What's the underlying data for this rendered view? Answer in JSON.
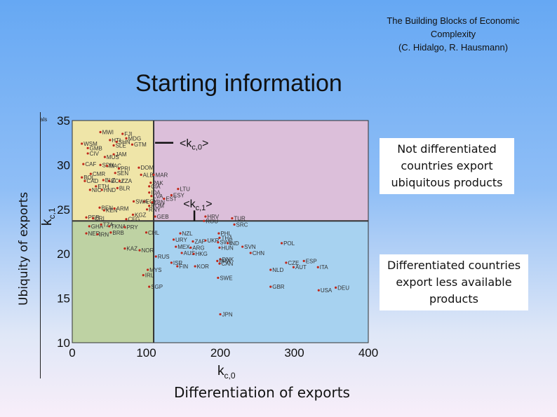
{
  "credit": {
    "line1": "The Building Blocks of Economic",
    "line2": "Complexity",
    "line3": "(C. Hidalgo, R. Hausmann)"
  },
  "slide_title": "Starting information",
  "side_label": "Ubiquity of exports",
  "bottom_label": "Differentiation of exports",
  "fragment": "als",
  "callouts": {
    "top": [
      "Not differentiated",
      "countries export",
      "ubiquitous products"
    ],
    "bottom": [
      "Differentiated countries",
      "export less available",
      "products"
    ]
  },
  "chart_data": {
    "type": "scatter",
    "xlabel": "k",
    "xlabel_sub": "c,0",
    "ylabel": "k",
    "ylabel_sub": "c,1",
    "xlim": [
      0,
      400
    ],
    "ylim": [
      10,
      35
    ],
    "xticks": [
      0,
      100,
      200,
      300,
      400
    ],
    "yticks": [
      10,
      15,
      20,
      25,
      30,
      35
    ],
    "grid": false,
    "quadrant_split": {
      "x": 110,
      "y": 23.7
    },
    "quadrant_colors": {
      "top_left": "#efe5a8",
      "top_right": "#dcbfda",
      "bottom_left": "#bed2a3",
      "bottom_right": "#a7d2f0"
    },
    "point_color": "#c0291b",
    "annotations": [
      {
        "text": "<k",
        "sub": "c,0",
        "suffix": ">",
        "x": 145,
        "y": 32.5
      },
      {
        "text": "<k",
        "sub": "c,1",
        "suffix": ">",
        "x": 150,
        "y": 25.7
      }
    ],
    "points": [
      {
        "label": "MWI",
        "x": 38,
        "y": 33.7
      },
      {
        "label": "FJI",
        "x": 68,
        "y": 33.5
      },
      {
        "label": "MDG",
        "x": 73,
        "y": 33.0
      },
      {
        "label": "HTI",
        "x": 51,
        "y": 32.8
      },
      {
        "label": "SHN",
        "x": 60,
        "y": 32.6
      },
      {
        "label": "WSM",
        "x": 13,
        "y": 32.4
      },
      {
        "label": "GTM",
        "x": 81,
        "y": 32.3
      },
      {
        "label": "SLE",
        "x": 56,
        "y": 32.2
      },
      {
        "label": "GMB",
        "x": 21,
        "y": 31.9
      },
      {
        "label": "CIV",
        "x": 21,
        "y": 31.3
      },
      {
        "label": "JAM",
        "x": 56,
        "y": 31.2
      },
      {
        "label": "MUS",
        "x": 44,
        "y": 30.9
      },
      {
        "label": "CAF",
        "x": 15,
        "y": 30.1
      },
      {
        "label": "SDN",
        "x": 38,
        "y": 30.0
      },
      {
        "label": "MAC",
        "x": 47,
        "y": 29.9
      },
      {
        "label": "DOM",
        "x": 90,
        "y": 29.7
      },
      {
        "label": "PRI",
        "x": 63,
        "y": 29.6
      },
      {
        "label": "CMR",
        "x": 25,
        "y": 29.0
      },
      {
        "label": "SEN",
        "x": 58,
        "y": 29.1
      },
      {
        "label": "ALB",
        "x": 93,
        "y": 28.9
      },
      {
        "label": "MAR",
        "x": 110,
        "y": 28.9
      },
      {
        "label": "BOL",
        "x": 13,
        "y": 28.6
      },
      {
        "label": "CAD",
        "x": 17,
        "y": 28.2
      },
      {
        "label": "BLZ",
        "x": 42,
        "y": 28.3
      },
      {
        "label": "ECU",
        "x": 50,
        "y": 28.2
      },
      {
        "label": "ZZA",
        "x": 64,
        "y": 28.2
      },
      {
        "label": "PAK",
        "x": 106,
        "y": 28.0
      },
      {
        "label": "CIA",
        "x": 104,
        "y": 27.6
      },
      {
        "label": "ETH",
        "x": 32,
        "y": 27.6
      },
      {
        "label": "BLR",
        "x": 61,
        "y": 27.4
      },
      {
        "label": "LTU",
        "x": 143,
        "y": 27.3
      },
      {
        "label": "NIC",
        "x": 24,
        "y": 27.2
      },
      {
        "label": "HND",
        "x": 40,
        "y": 27.2
      },
      {
        "label": "IDA",
        "x": 104,
        "y": 26.9
      },
      {
        "label": "LVA",
        "x": 107,
        "y": 26.5
      },
      {
        "label": "EST",
        "x": 124,
        "y": 26.2
      },
      {
        "label": "ESY",
        "x": 134,
        "y": 26.6
      },
      {
        "label": "EGY",
        "x": 97,
        "y": 25.9
      },
      {
        "label": "SWA",
        "x": 83,
        "y": 25.9
      },
      {
        "label": "LBN",
        "x": 108,
        "y": 25.8
      },
      {
        "label": "ROM",
        "x": 104,
        "y": 25.4
      },
      {
        "label": "RNY",
        "x": 101,
        "y": 25.0
      },
      {
        "label": "BEN",
        "x": 37,
        "y": 25.2
      },
      {
        "label": "KEN",
        "x": 43,
        "y": 24.9
      },
      {
        "label": "ARM",
        "x": 57,
        "y": 25.1
      },
      {
        "label": "KGZ",
        "x": 82,
        "y": 24.4
      },
      {
        "label": "GEB",
        "x": 112,
        "y": 24.2
      },
      {
        "label": "HRV",
        "x": 180,
        "y": 24.2
      },
      {
        "label": "TUR",
        "x": 216,
        "y": 24.0
      },
      {
        "label": "PER",
        "x": 19,
        "y": 24.1
      },
      {
        "label": "CRI",
        "x": 28,
        "y": 24.0
      },
      {
        "label": "CFG",
        "x": 73,
        "y": 23.9
      },
      {
        "label": "ROU",
        "x": 178,
        "y": 23.7
      },
      {
        "label": "SRC",
        "x": 219,
        "y": 23.3
      },
      {
        "label": "GHA",
        "x": 23,
        "y": 23.1
      },
      {
        "label": "TZA",
        "x": 39,
        "y": 23.3
      },
      {
        "label": "TKNA",
        "x": 50,
        "y": 23.1
      },
      {
        "label": "PRY",
        "x": 71,
        "y": 23.0
      },
      {
        "label": "BRB",
        "x": 52,
        "y": 22.4
      },
      {
        "label": "NER",
        "x": 19,
        "y": 22.3
      },
      {
        "label": "IRN",
        "x": 34,
        "y": 22.2
      },
      {
        "label": "CHL",
        "x": 100,
        "y": 22.4
      },
      {
        "label": "NZL",
        "x": 146,
        "y": 22.3
      },
      {
        "label": "PHL",
        "x": 198,
        "y": 22.3
      },
      {
        "label": "THA",
        "x": 199,
        "y": 21.8
      },
      {
        "label": "URY",
        "x": 137,
        "y": 21.6
      },
      {
        "label": "ZAF",
        "x": 163,
        "y": 21.4
      },
      {
        "label": "UKR",
        "x": 180,
        "y": 21.5
      },
      {
        "label": "SWE",
        "x": 197,
        "y": 21.3
      },
      {
        "label": "IND",
        "x": 210,
        "y": 21.2
      },
      {
        "label": "POL",
        "x": 283,
        "y": 21.2
      },
      {
        "label": "ARG",
        "x": 160,
        "y": 20.7
      },
      {
        "label": "HUN",
        "x": 199,
        "y": 20.7
      },
      {
        "label": "SVN",
        "x": 230,
        "y": 20.8
      },
      {
        "label": "MEX",
        "x": 140,
        "y": 20.8
      },
      {
        "label": "KAZ",
        "x": 71,
        "y": 20.6
      },
      {
        "label": "NOR",
        "x": 91,
        "y": 20.4
      },
      {
        "label": "AUS",
        "x": 148,
        "y": 20.1
      },
      {
        "label": "HKG",
        "x": 164,
        "y": 20.0
      },
      {
        "label": "CHN",
        "x": 241,
        "y": 20.1
      },
      {
        "label": "RUS",
        "x": 113,
        "y": 19.7
      },
      {
        "label": "DNK",
        "x": 200,
        "y": 19.4
      },
      {
        "label": "BRA",
        "x": 196,
        "y": 19.2
      },
      {
        "label": "CZE",
        "x": 289,
        "y": 19.0
      },
      {
        "label": "ESP",
        "x": 313,
        "y": 19.2
      },
      {
        "label": "ISR",
        "x": 134,
        "y": 19.0
      },
      {
        "label": "CAN",
        "x": 199,
        "y": 18.9
      },
      {
        "label": "FIN",
        "x": 142,
        "y": 18.6
      },
      {
        "label": "KOR",
        "x": 166,
        "y": 18.6
      },
      {
        "label": "AUT",
        "x": 299,
        "y": 18.5
      },
      {
        "label": "ITA",
        "x": 332,
        "y": 18.5
      },
      {
        "label": "MYS",
        "x": 102,
        "y": 18.2
      },
      {
        "label": "NLD",
        "x": 268,
        "y": 18.2
      },
      {
        "label": "IRL",
        "x": 96,
        "y": 17.6
      },
      {
        "label": "SWE",
        "x": 197,
        "y": 17.3
      },
      {
        "label": "SGP",
        "x": 104,
        "y": 16.3
      },
      {
        "label": "GBR",
        "x": 268,
        "y": 16.3
      },
      {
        "label": "DEU",
        "x": 356,
        "y": 16.2
      },
      {
        "label": "USA",
        "x": 333,
        "y": 15.9
      },
      {
        "label": "JPN",
        "x": 200,
        "y": 13.2
      }
    ]
  }
}
